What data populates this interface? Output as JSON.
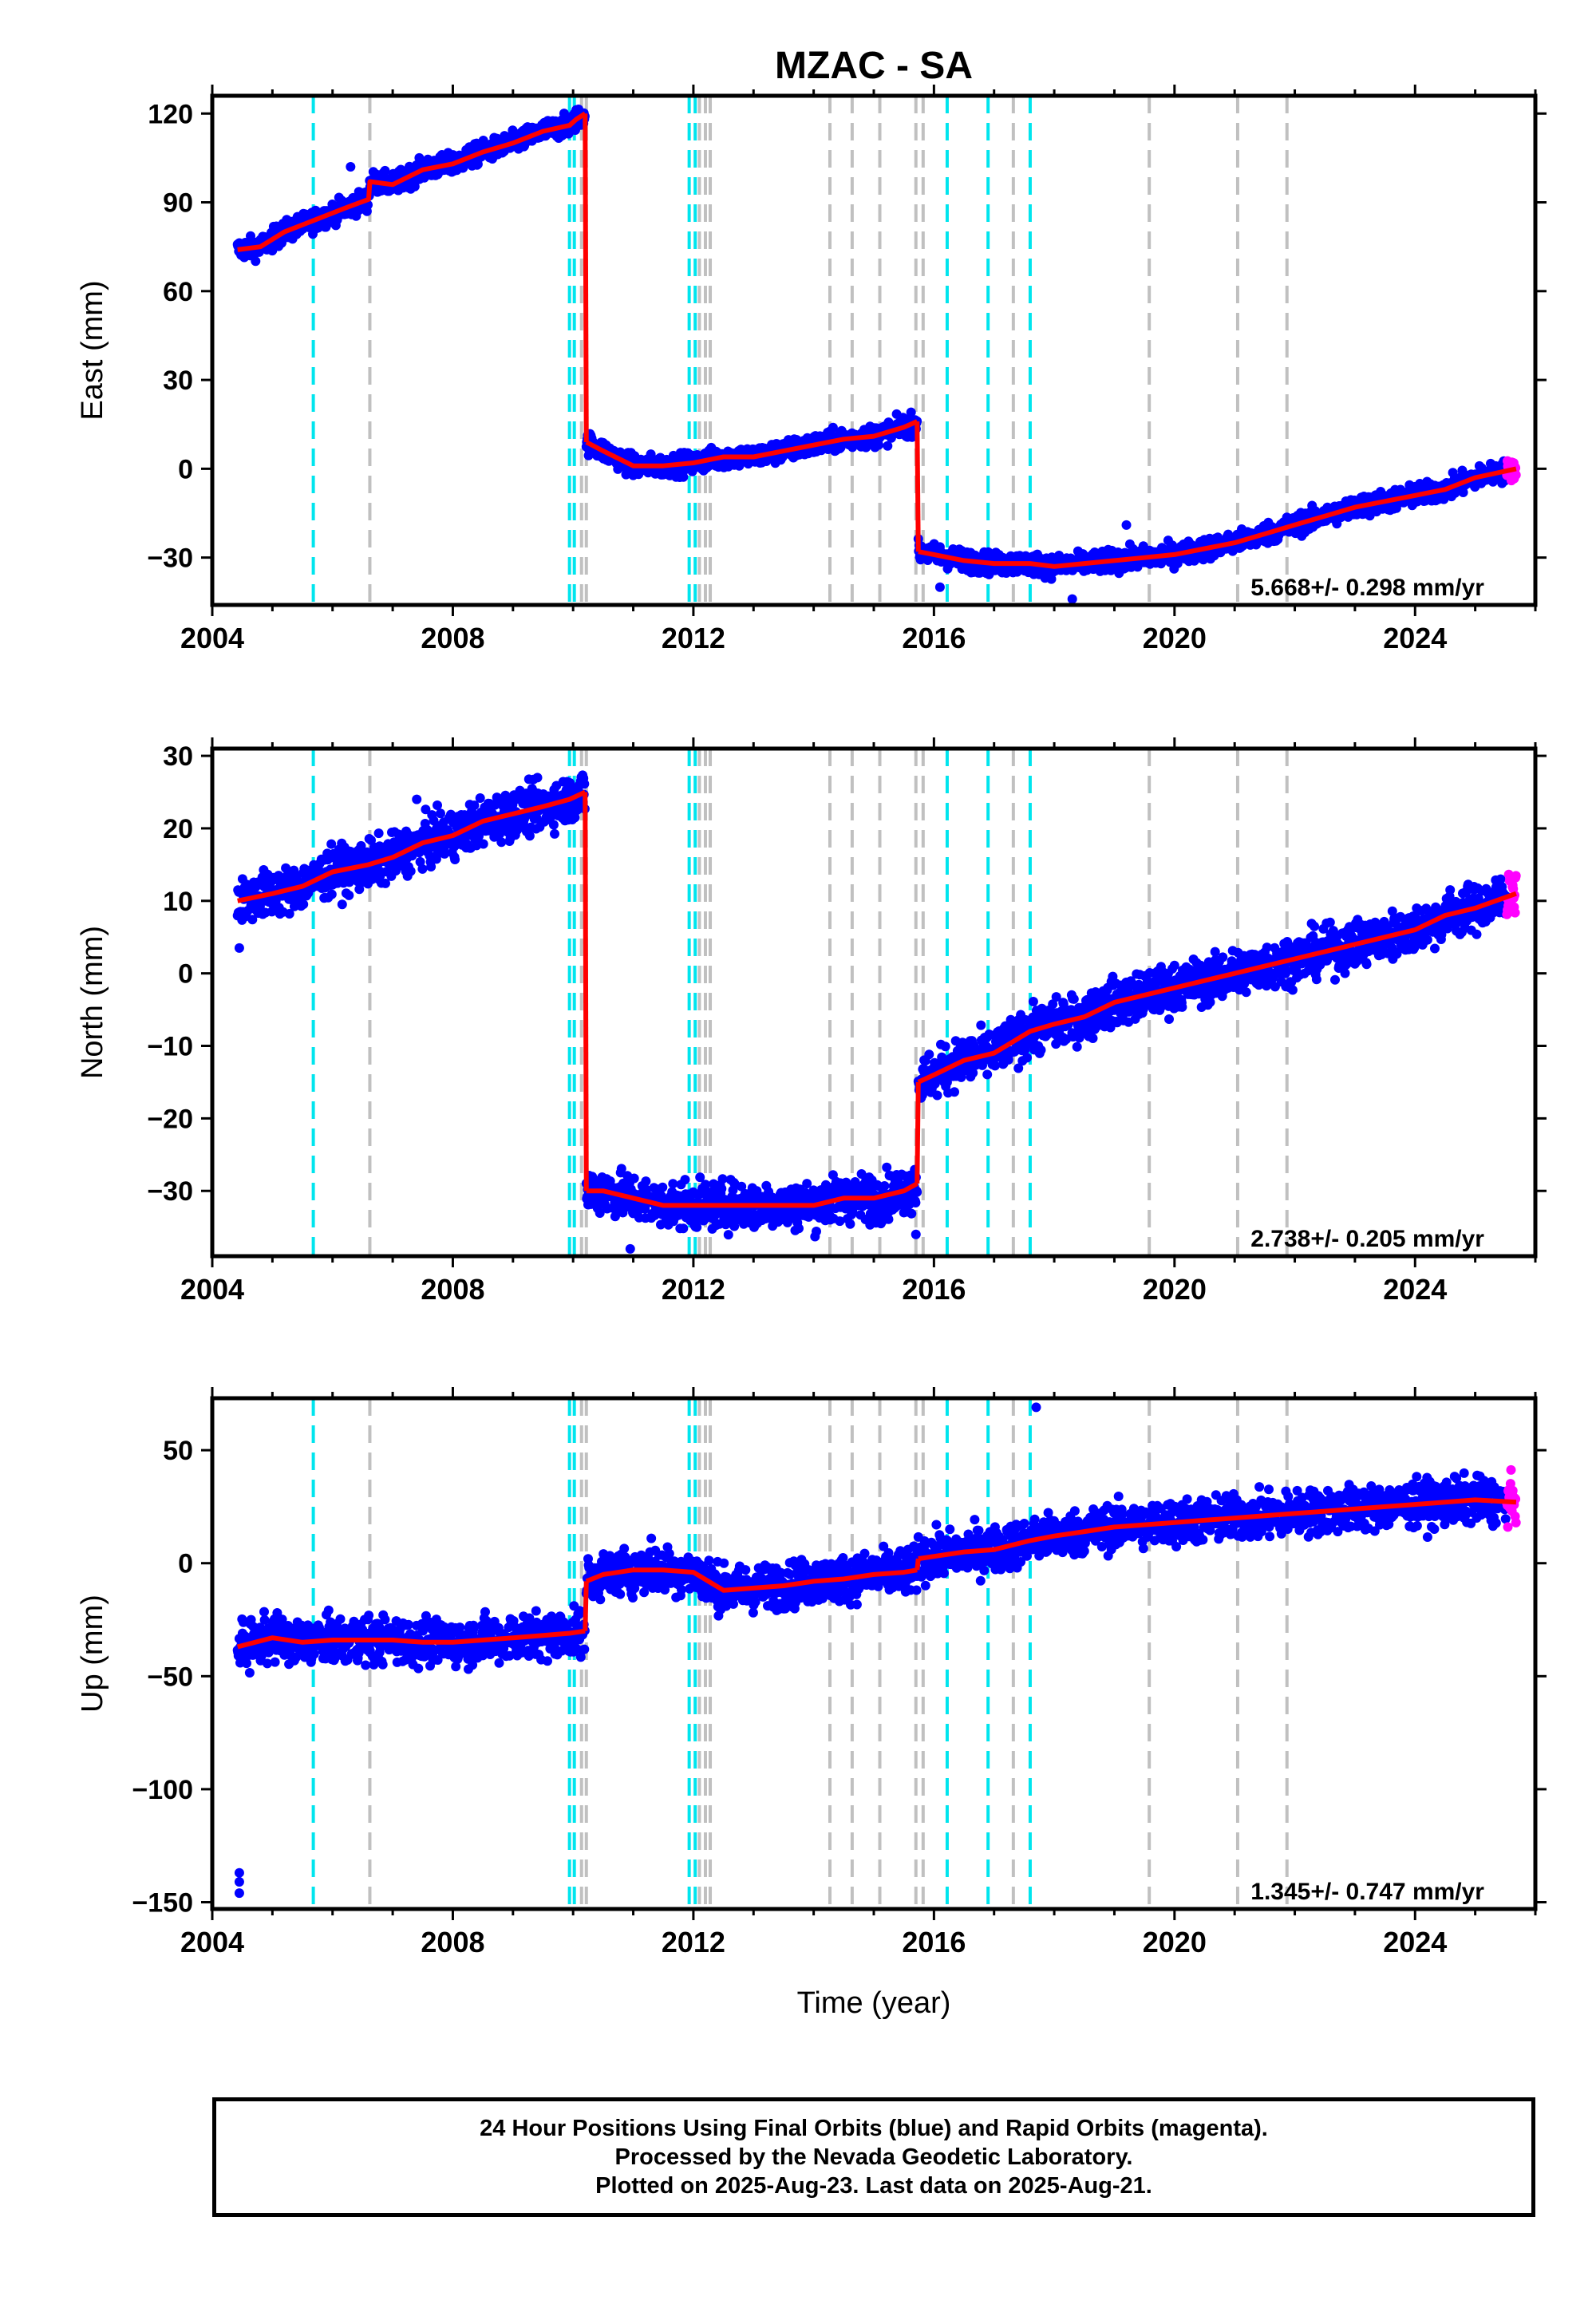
{
  "colors": {
    "final_orbits": "#0000ff",
    "rapid_orbits": "#ff00ff",
    "model": "#ff0000",
    "antenna_change": "#00e5ee",
    "equipment_change": "#c0c0c0",
    "frame": "#000000"
  },
  "chart_data": {
    "type": "scatter",
    "title": "MZAC - SA",
    "xlabel": "Time (year)",
    "xlim": [
      2004.0,
      2026.0
    ],
    "x_ticks": [
      2004,
      2008,
      2012,
      2016,
      2020,
      2024
    ],
    "antenna_change_years": [
      2005.68,
      2009.94,
      2010.02,
      2011.93,
      2012.03,
      2016.22,
      2016.9,
      2017.6
    ],
    "equipment_change_years": [
      2006.62,
      2010.14,
      2010.22,
      2012.1,
      2012.2,
      2012.28,
      2014.27,
      2014.64,
      2015.1,
      2015.7,
      2015.82,
      2017.32,
      2019.58,
      2021.05,
      2021.87
    ],
    "rapid_start_year": 2025.52,
    "panels": [
      {
        "ylabel": "East (mm)",
        "ylim": [
          -46,
          126
        ],
        "yticks": [
          -30,
          0,
          30,
          60,
          90,
          120
        ],
        "velocity_label": "5.668+/- 0.298 mm/yr",
        "scatter": 1.8,
        "segments": [
          {
            "x": [
              2004.42,
              2004.8,
              2005.2,
              2005.7,
              2006.2,
              2006.6,
              2006.62,
              2007.0,
              2007.5,
              2008.0,
              2008.5,
              2009.0,
              2009.5,
              2009.94,
              2010.05,
              2010.2
            ],
            "y": [
              74,
              75,
              80,
              84,
              88,
              91,
              97,
              96,
              101,
              103,
              107,
              110,
              114,
              116,
              118,
              120
            ]
          },
          {
            "x": [
              2010.22,
              2010.5,
              2011.0,
              2011.5,
              2012.0,
              2012.5,
              2013.0,
              2013.5,
              2014.0,
              2014.5,
              2015.0,
              2015.5,
              2015.72
            ],
            "y": [
              9,
              6,
              1,
              1,
              2,
              4,
              4,
              6,
              8,
              10,
              11,
              14,
              16
            ]
          },
          {
            "x": [
              2015.74,
              2016.0,
              2016.5,
              2017.0,
              2017.6,
              2018.0,
              2018.5,
              2019.0,
              2019.5,
              2020.0,
              2020.5,
              2021.0,
              2021.5,
              2022.0,
              2022.5,
              2023.0,
              2023.5,
              2024.0,
              2024.5,
              2025.0,
              2025.68
            ],
            "y": [
              -28,
              -29,
              -31,
              -32,
              -32,
              -33,
              -32,
              -31,
              -30,
              -29,
              -27,
              -25,
              -22,
              -19,
              -16,
              -13,
              -11,
              -9,
              -7,
              -3,
              0
            ]
          }
        ],
        "outliers": [
          [
            2006.3,
            102
          ],
          [
            2016.1,
            -40
          ],
          [
            2018.3,
            -44
          ],
          [
            2019.2,
            -19
          ]
        ]
      },
      {
        "ylabel": "North (mm)",
        "ylim": [
          -39,
          31
        ],
        "yticks": [
          -30,
          -20,
          -10,
          0,
          10,
          20,
          30
        ],
        "velocity_label": "2.738+/- 0.205 mm/yr",
        "scatter": 1.6,
        "segments": [
          {
            "x": [
              2004.42,
              2005.0,
              2005.5,
              2006.0,
              2006.6,
              2007.0,
              2007.5,
              2008.0,
              2008.5,
              2009.0,
              2009.5,
              2009.94,
              2010.2
            ],
            "y": [
              10,
              11,
              12,
              14,
              15,
              16,
              18,
              19,
              21,
              22,
              23,
              24,
              25
            ]
          },
          {
            "x": [
              2010.22,
              2010.5,
              2011.0,
              2011.5,
              2012.0,
              2012.5,
              2013.0,
              2013.5,
              2014.0,
              2014.5,
              2015.0,
              2015.5,
              2015.72
            ],
            "y": [
              -30,
              -30,
              -31,
              -32,
              -32,
              -32,
              -32,
              -32,
              -32,
              -31,
              -31,
              -30,
              -29
            ]
          },
          {
            "x": [
              2015.74,
              2016.0,
              2016.5,
              2017.0,
              2017.6,
              2018.0,
              2018.5,
              2019.0,
              2019.5,
              2020.0,
              2020.5,
              2021.0,
              2021.5,
              2022.0,
              2022.5,
              2023.0,
              2023.5,
              2024.0,
              2024.5,
              2025.0,
              2025.68
            ],
            "y": [
              -15,
              -14,
              -12,
              -11,
              -8,
              -7,
              -6,
              -4,
              -3,
              -2,
              -1,
              0,
              1,
              2,
              3,
              4,
              5,
              6,
              8,
              9,
              11
            ]
          }
        ],
        "outliers": [
          [
            2004.45,
            3.5
          ],
          [
            2010.95,
            -38
          ],
          [
            2015.7,
            -36
          ],
          [
            2007.4,
            24
          ]
        ]
      },
      {
        "ylabel": "Up (mm)",
        "ylim": [
          -153,
          73
        ],
        "yticks": [
          -150,
          -100,
          -50,
          0,
          50
        ],
        "velocity_label": "1.345+/- 0.747 mm/yr",
        "scatter": 5,
        "segments": [
          {
            "x": [
              2004.42,
              2005.0,
              2005.5,
              2006.0,
              2006.6,
              2007.0,
              2007.5,
              2008.0,
              2008.5,
              2009.0,
              2009.5,
              2009.94,
              2010.2
            ],
            "y": [
              -37,
              -33,
              -35,
              -34,
              -34,
              -34,
              -35,
              -35,
              -34,
              -33,
              -32,
              -31,
              -30
            ]
          },
          {
            "x": [
              2010.22,
              2010.5,
              2011.0,
              2011.5,
              2012.0,
              2012.5,
              2013.0,
              2013.5,
              2014.0,
              2014.5,
              2015.0,
              2015.5,
              2015.72
            ],
            "y": [
              -8,
              -5,
              -3,
              -3,
              -4,
              -12,
              -11,
              -10,
              -8,
              -7,
              -5,
              -4,
              -3
            ]
          },
          {
            "x": [
              2015.74,
              2016.0,
              2016.5,
              2017.0,
              2017.6,
              2018.0,
              2018.5,
              2019.0,
              2019.5,
              2020.0,
              2020.5,
              2021.0,
              2021.5,
              2022.0,
              2022.5,
              2023.0,
              2023.5,
              2024.0,
              2024.5,
              2025.0,
              2025.68
            ],
            "y": [
              2,
              3,
              5,
              6,
              10,
              12,
              14,
              16,
              17,
              18,
              19,
              20,
              21,
              22,
              23,
              24,
              25,
              26,
              27,
              28,
              27
            ]
          }
        ],
        "outliers": [
          [
            2004.45,
            -137
          ],
          [
            2004.45,
            -141
          ],
          [
            2004.45,
            -146
          ],
          [
            2017.7,
            69
          ],
          [
            2011.3,
            11
          ]
        ]
      }
    ]
  },
  "footer": {
    "line1": "24 Hour Positions Using Final Orbits (blue) and Rapid Orbits (magenta).",
    "line2": "Processed by the Nevada Geodetic Laboratory.",
    "line3": "Plotted on 2025-Aug-23. Last data on 2025-Aug-21."
  }
}
